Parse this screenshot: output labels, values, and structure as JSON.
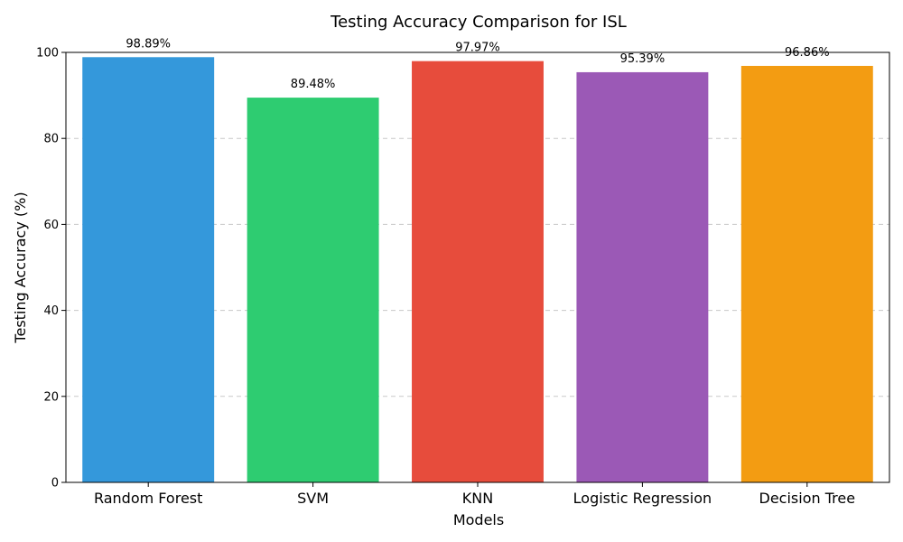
{
  "chart_data": {
    "type": "bar",
    "title": "Testing Accuracy Comparison for ISL",
    "xlabel": "Models",
    "ylabel": "Testing Accuracy (%)",
    "categories": [
      "Random Forest",
      "SVM",
      "KNN",
      "Logistic Regression",
      "Decision Tree"
    ],
    "values": [
      98.89,
      89.48,
      97.97,
      95.39,
      96.86
    ],
    "value_labels": [
      "98.89%",
      "89.48%",
      "97.97%",
      "95.39%",
      "96.86%"
    ],
    "colors": [
      "#3498db",
      "#2ecc71",
      "#e74c3c",
      "#9b59b6",
      "#f39c12"
    ],
    "ylim": [
      0,
      100
    ],
    "yticks": [
      0,
      20,
      40,
      60,
      80,
      100
    ],
    "ytick_labels": [
      "0",
      "20",
      "40",
      "60",
      "80",
      "100"
    ],
    "grid": "y-dashed",
    "legend": "none"
  }
}
